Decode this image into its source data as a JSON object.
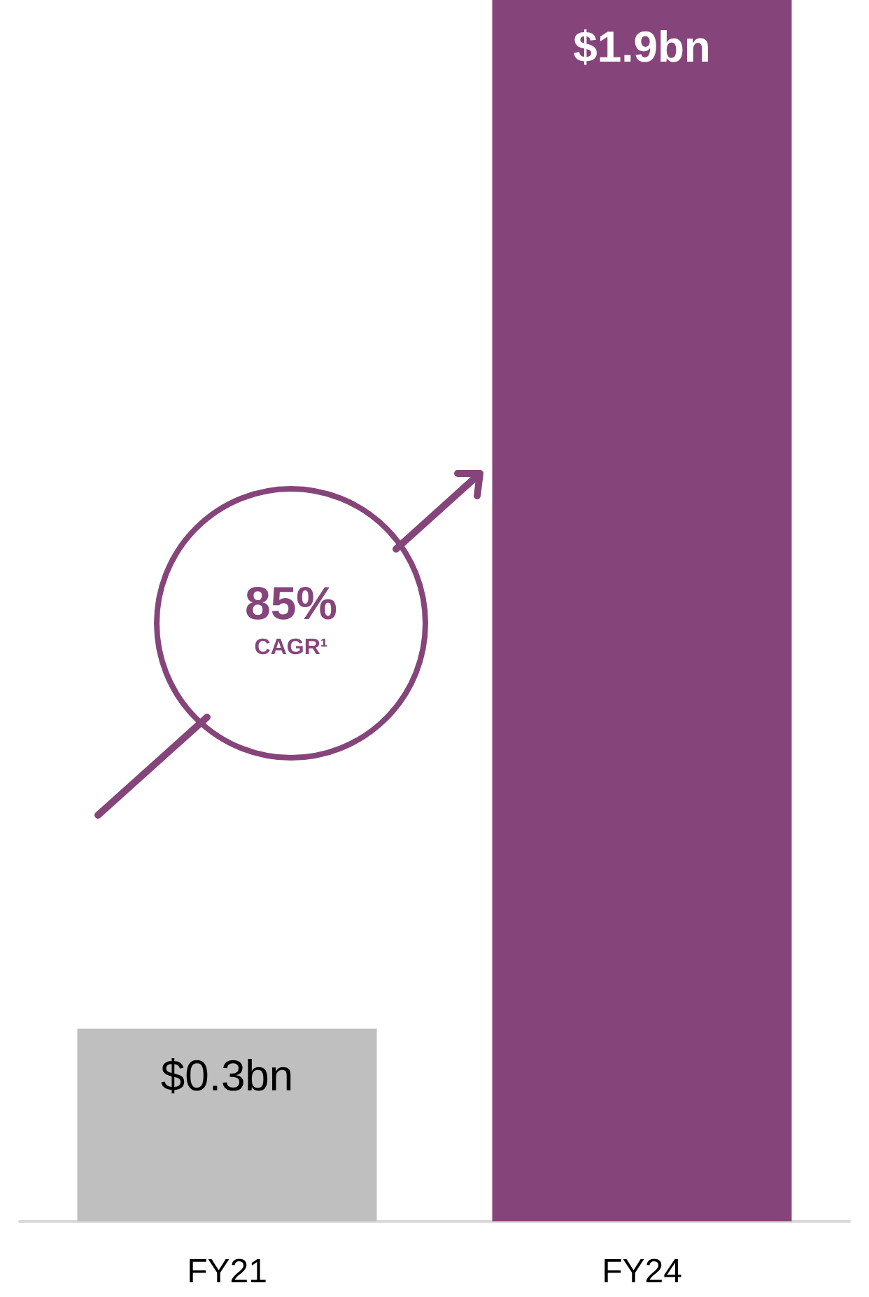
{
  "chart_data": {
    "type": "bar",
    "categories": [
      "FY21",
      "FY24"
    ],
    "values": [
      0.3,
      1.9
    ],
    "value_labels": [
      "$0.3bn",
      "$1.9bn"
    ],
    "colors": [
      "#bfbfbf",
      "#86457a"
    ],
    "annotations": [
      "85%",
      "CAGR¹"
    ]
  }
}
